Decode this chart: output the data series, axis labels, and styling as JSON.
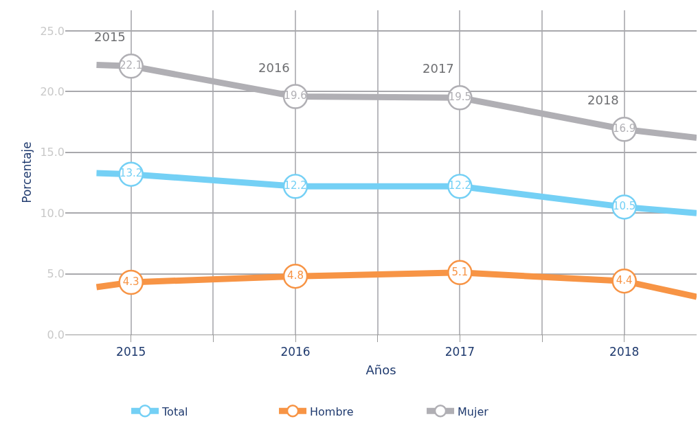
{
  "chart_data": {
    "type": "line",
    "ylabel": "Porcentaje",
    "xlabel": "Años",
    "x": [
      2014.79,
      2015,
      2016,
      2017,
      2018,
      2018.44
    ],
    "xlim": [
      2014.6,
      2018.44
    ],
    "xticks": [
      2015,
      {
        "value": 2015.5,
        "label": null
      },
      2016,
      {
        "value": 2016.5,
        "label": null
      },
      2017,
      {
        "value": 2017.5,
        "label": null
      },
      2018
    ],
    "ylim": [
      0,
      26.7
    ],
    "yticks": [
      {
        "value": 0,
        "label": "0.0"
      },
      {
        "value": 5,
        "label": "5.0"
      },
      {
        "value": 10,
        "label": "10.0"
      },
      {
        "value": 15,
        "label": "15.0"
      },
      {
        "value": 20,
        "label": "20.0"
      },
      {
        "value": 25,
        "label": "25.0"
      }
    ],
    "series": [
      {
        "name": "Total",
        "color": "#74d0f5",
        "values": [
          13.3,
          13.2,
          12.2,
          12.2,
          10.5,
          10.0
        ],
        "value_labels": [
          null,
          "13.2",
          "12.2",
          "12.2",
          "10.5",
          null
        ]
      },
      {
        "name": "Hombre",
        "color": "#f79445",
        "values": [
          3.9,
          4.3,
          4.8,
          5.1,
          4.4,
          3.1
        ],
        "value_labels": [
          null,
          "4.3",
          "4.8",
          "5.1",
          "4.4",
          null
        ]
      },
      {
        "name": "Mujer",
        "color": "#b0afb4",
        "values": [
          22.2,
          22.1,
          19.6,
          19.5,
          16.9,
          16.2
        ],
        "value_labels": [
          null,
          "22.1",
          "19.6",
          "19.5",
          "16.9",
          null
        ]
      }
    ],
    "annotations": [
      "2015",
      "2016",
      "2017",
      "2018"
    ],
    "grid": true,
    "legend": "bottom",
    "marker": "circle",
    "line_style": "solid"
  }
}
